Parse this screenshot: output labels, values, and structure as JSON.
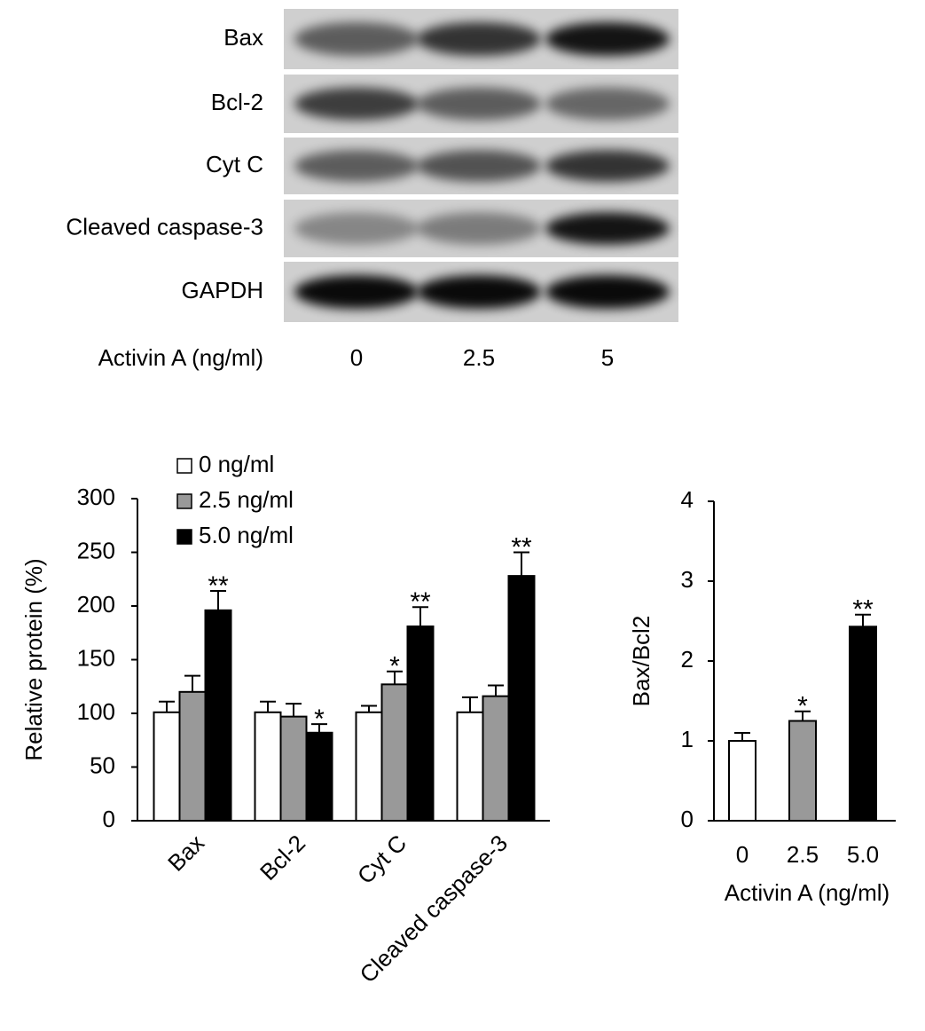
{
  "blot": {
    "rows": [
      "Bax",
      "Bcl-2",
      "Cyt C",
      "Cleaved caspase-3",
      "GAPDH"
    ],
    "treatment_label": "Activin A (ng/ml)",
    "lanes": [
      "0",
      "2.5",
      "5"
    ]
  },
  "chart_data": [
    {
      "type": "bar",
      "ylabel": "Relative protein (%)",
      "categories": [
        "Bax",
        "Bcl-2",
        "Cyt C",
        "Cleaved caspase-3"
      ],
      "series": [
        {
          "name": "0 ng/ml",
          "color": "#ffffff",
          "values": [
            101,
            101,
            101,
            101
          ],
          "errors": [
            10,
            10,
            6,
            14
          ],
          "significance": [
            null,
            null,
            null,
            null
          ]
        },
        {
          "name": "2.5 ng/ml",
          "color": "#999999",
          "values": [
            120,
            97,
            127,
            116
          ],
          "errors": [
            15,
            12,
            12,
            10
          ],
          "significance": [
            null,
            null,
            "*",
            null
          ]
        },
        {
          "name": "5.0 ng/ml",
          "color": "#000000",
          "values": [
            196,
            82,
            181,
            228
          ],
          "errors": [
            18,
            8,
            18,
            22
          ],
          "significance": [
            "**",
            "*",
            "**",
            "**"
          ]
        }
      ],
      "ylim": [
        0,
        300
      ],
      "yticks": [
        0,
        50,
        100,
        150,
        200,
        250,
        300
      ]
    },
    {
      "type": "bar",
      "ylabel": "Bax/Bcl2",
      "xlabel": "Activin A (ng/ml)",
      "categories": [
        "0",
        "2.5",
        "5.0"
      ],
      "values": [
        1.0,
        1.25,
        2.43
      ],
      "errors": [
        0.1,
        0.12,
        0.15
      ],
      "significance": [
        null,
        "*",
        "**"
      ],
      "colors": [
        "#ffffff",
        "#999999",
        "#000000"
      ],
      "ylim": [
        0,
        4
      ],
      "yticks": [
        0,
        1,
        2,
        3,
        4
      ]
    }
  ]
}
